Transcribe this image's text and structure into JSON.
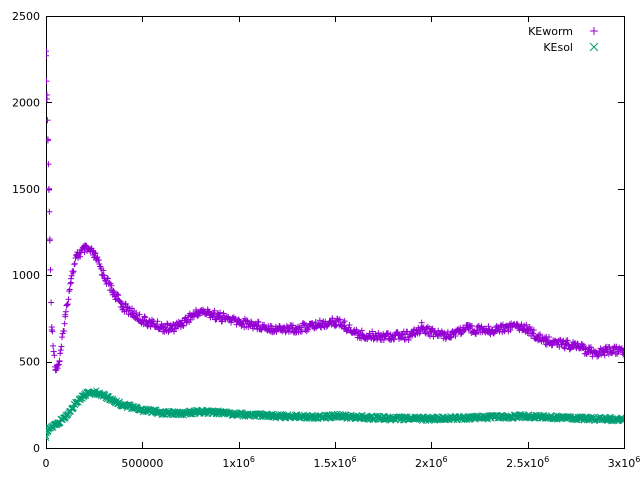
{
  "chart_data": {
    "type": "scatter",
    "title": "",
    "xlabel": "",
    "ylabel": "",
    "xlim": [
      0,
      3000000
    ],
    "ylim": [
      0,
      2500
    ],
    "grid": false,
    "legend_position": "top-right",
    "x_ticks": [
      {
        "value": 0,
        "label": "0",
        "exp": ""
      },
      {
        "value": 500000,
        "label": "500000",
        "exp": ""
      },
      {
        "value": 1000000,
        "label": "1x10",
        "exp": "6"
      },
      {
        "value": 1500000,
        "label": "1.5x10",
        "exp": "6"
      },
      {
        "value": 2000000,
        "label": "2x10",
        "exp": "6"
      },
      {
        "value": 2500000,
        "label": "2.5x10",
        "exp": "6"
      },
      {
        "value": 3000000,
        "label": "3x10",
        "exp": "6"
      }
    ],
    "y_ticks": [
      {
        "value": 0,
        "label": "0"
      },
      {
        "value": 500,
        "label": "500"
      },
      {
        "value": 1000,
        "label": "1000"
      },
      {
        "value": 1500,
        "label": "1500"
      },
      {
        "value": 2000,
        "label": "2000"
      },
      {
        "value": 2500,
        "label": "2500"
      }
    ],
    "series": [
      {
        "name": "KEworm",
        "marker": "plus",
        "color": "#9400d3",
        "x": [
          0,
          5000,
          10000,
          15000,
          20000,
          30000,
          50000,
          70000,
          100000,
          130000,
          160000,
          200000,
          230000,
          260000,
          300000,
          350000,
          400000,
          450000,
          500000,
          550000,
          600000,
          650000,
          700000,
          750000,
          800000,
          850000,
          900000,
          1000000,
          1100000,
          1200000,
          1300000,
          1400000,
          1500000,
          1550000,
          1600000,
          1650000,
          1700000,
          1800000,
          1900000,
          1950000,
          2000000,
          2050000,
          2100000,
          2150000,
          2200000,
          2300000,
          2400000,
          2450000,
          2500000,
          2550000,
          2600000,
          2700000,
          2800000,
          2850000,
          2900000,
          3000000
        ],
        "y": [
          2270,
          2020,
          1780,
          1500,
          1200,
          700,
          450,
          500,
          760,
          980,
          1110,
          1150,
          1140,
          1100,
          1000,
          900,
          820,
          780,
          740,
          720,
          700,
          690,
          720,
          760,
          790,
          780,
          760,
          730,
          710,
          690,
          690,
          710,
          730,
          710,
          670,
          650,
          650,
          650,
          650,
          700,
          670,
          655,
          660,
          680,
          690,
          680,
          700,
          710,
          690,
          640,
          620,
          600,
          570,
          550,
          560,
          565
        ]
      },
      {
        "name": "KEsol",
        "marker": "cross",
        "color": "#009e73",
        "x": [
          0,
          10000,
          30000,
          60000,
          100000,
          150000,
          200000,
          250000,
          300000,
          350000,
          400000,
          500000,
          600000,
          700000,
          800000,
          900000,
          1000000,
          1200000,
          1400000,
          1500000,
          1600000,
          1800000,
          2000000,
          2200000,
          2400000,
          2500000,
          2600000,
          2800000,
          3000000
        ],
        "y": [
          70,
          100,
          120,
          140,
          180,
          250,
          310,
          325,
          305,
          275,
          250,
          220,
          205,
          200,
          210,
          205,
          195,
          185,
          180,
          185,
          180,
          170,
          170,
          175,
          180,
          185,
          180,
          170,
          165
        ]
      }
    ]
  }
}
